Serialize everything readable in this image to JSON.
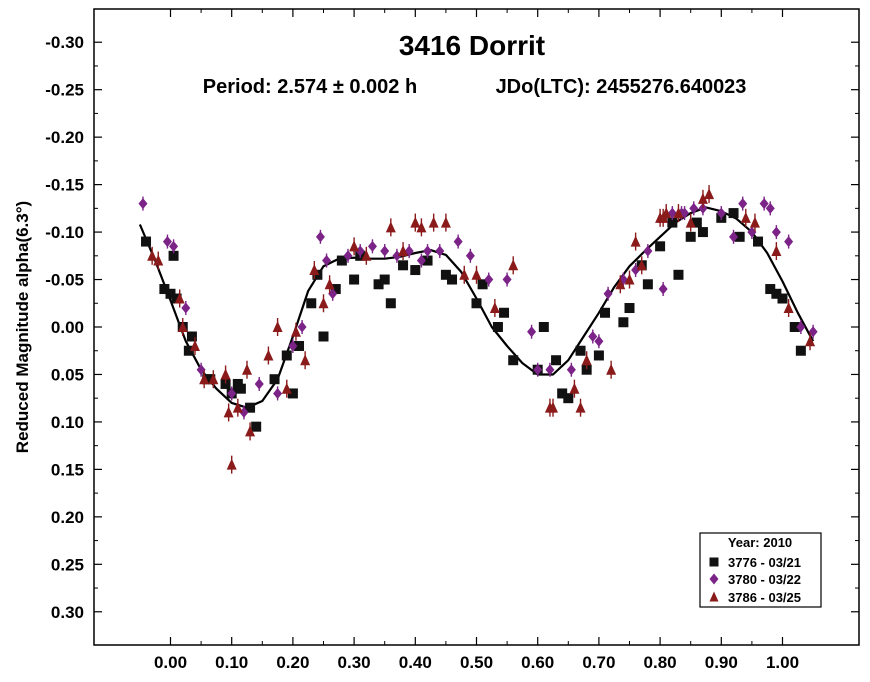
{
  "chart_data": {
    "type": "scatter",
    "title": "3416 Dorrit",
    "subtitle_period": "Period: 2.574 ± 0.002 h",
    "subtitle_epoch": "JDo(LTC): 2455276.640023",
    "xlabel": "",
    "ylabel": "Reduced Magnitude alpha(6.3°)",
    "xlim": [
      -0.125,
      1.125
    ],
    "ylim": [
      0.335,
      -0.335
    ],
    "y_inverted": true,
    "grid": false,
    "xticks": [
      0.0,
      0.1,
      0.2,
      0.3,
      0.4,
      0.5,
      0.6,
      0.7,
      0.8,
      0.9,
      1.0
    ],
    "xtick_labels": [
      "0.00",
      "0.10",
      "0.20",
      "0.30",
      "0.40",
      "0.50",
      "0.60",
      "0.70",
      "0.80",
      "0.90",
      "1.00"
    ],
    "yticks": [
      -0.3,
      -0.25,
      -0.2,
      -0.15,
      -0.1,
      -0.05,
      0.0,
      0.05,
      0.1,
      0.15,
      0.2,
      0.25,
      0.3
    ],
    "ytick_labels": [
      "-0.30",
      "-0.25",
      "-0.20",
      "-0.15",
      "-0.10",
      "-0.05",
      "0.00",
      "0.05",
      "0.10",
      "0.15",
      "0.20",
      "0.25",
      "0.30"
    ],
    "legend": {
      "position": "bottom-right",
      "title": "Year: 2010",
      "entries": [
        "3776 - 03/21",
        "3780 - 03/22",
        "3786 - 03/25"
      ]
    },
    "series": [
      {
        "name": "3776 - 03/21",
        "marker": "square",
        "color": "#111111",
        "x": [
          -0.04,
          -0.01,
          0.0,
          0.005,
          0.01,
          0.02,
          0.03,
          0.035,
          0.06,
          0.065,
          0.09,
          0.1,
          0.11,
          0.115,
          0.13,
          0.14,
          0.17,
          0.19,
          0.2,
          0.21,
          0.23,
          0.24,
          0.25,
          0.27,
          0.28,
          0.3,
          0.31,
          0.34,
          0.35,
          0.36,
          0.38,
          0.4,
          0.42,
          0.45,
          0.46,
          0.5,
          0.51,
          0.535,
          0.545,
          0.56,
          0.6,
          0.61,
          0.63,
          0.64,
          0.65,
          0.67,
          0.68,
          0.7,
          0.71,
          0.74,
          0.75,
          0.77,
          0.78,
          0.8,
          0.82,
          0.83,
          0.85,
          0.86,
          0.87,
          0.9,
          0.92,
          0.93,
          0.96,
          0.98,
          0.99,
          1.0,
          1.02,
          1.03
        ],
        "y": [
          -0.09,
          -0.04,
          -0.035,
          -0.075,
          -0.03,
          0.0,
          0.025,
          0.01,
          0.055,
          0.055,
          0.06,
          0.07,
          0.06,
          0.065,
          0.085,
          0.105,
          0.055,
          0.03,
          0.07,
          0.02,
          -0.025,
          -0.055,
          0.01,
          -0.04,
          -0.07,
          -0.05,
          -0.075,
          -0.045,
          -0.05,
          -0.025,
          -0.065,
          -0.06,
          -0.07,
          -0.055,
          -0.05,
          -0.025,
          -0.045,
          0.0,
          -0.015,
          0.035,
          0.045,
          0.0,
          0.035,
          0.07,
          0.075,
          0.025,
          0.045,
          0.03,
          -0.015,
          -0.005,
          -0.02,
          -0.065,
          -0.045,
          -0.085,
          -0.11,
          -0.055,
          -0.095,
          -0.11,
          -0.1,
          -0.115,
          -0.12,
          -0.095,
          -0.09,
          -0.04,
          -0.035,
          -0.03,
          0.0,
          0.025
        ]
      },
      {
        "name": "3780 - 03/22",
        "marker": "diamond",
        "color": "#7b2387",
        "x": [
          -0.045,
          -0.005,
          0.005,
          0.025,
          0.05,
          0.1,
          0.12,
          0.145,
          0.175,
          0.2,
          0.215,
          0.245,
          0.255,
          0.265,
          0.29,
          0.31,
          0.33,
          0.35,
          0.37,
          0.39,
          0.41,
          0.42,
          0.44,
          0.47,
          0.49,
          0.52,
          0.55,
          0.59,
          0.6,
          0.62,
          0.655,
          0.69,
          0.7,
          0.715,
          0.74,
          0.76,
          0.78,
          0.805,
          0.82,
          0.835,
          0.84,
          0.855,
          0.87,
          0.9,
          0.92,
          0.935,
          0.95,
          0.97,
          0.98,
          0.99,
          1.01,
          1.03,
          1.05
        ],
        "y": [
          -0.13,
          -0.09,
          -0.085,
          -0.02,
          0.045,
          0.07,
          0.09,
          0.06,
          0.07,
          0.02,
          0.0,
          -0.095,
          -0.07,
          -0.035,
          -0.075,
          -0.08,
          -0.085,
          -0.08,
          -0.075,
          -0.08,
          -0.07,
          -0.08,
          -0.08,
          -0.09,
          -0.075,
          -0.05,
          -0.05,
          0.005,
          0.045,
          0.045,
          0.045,
          0.01,
          0.015,
          -0.035,
          -0.05,
          -0.06,
          -0.08,
          -0.04,
          -0.12,
          -0.12,
          -0.12,
          -0.125,
          -0.125,
          -0.12,
          -0.095,
          -0.13,
          -0.1,
          -0.13,
          -0.125,
          -0.1,
          -0.09,
          0.0,
          0.005
        ]
      },
      {
        "name": "3786 - 03/25",
        "marker": "triangle",
        "color": "#8b1a1a",
        "x": [
          -0.03,
          -0.02,
          0.015,
          0.02,
          0.04,
          0.055,
          0.07,
          0.09,
          0.095,
          0.1,
          0.11,
          0.125,
          0.13,
          0.16,
          0.175,
          0.19,
          0.205,
          0.22,
          0.235,
          0.25,
          0.26,
          0.3,
          0.32,
          0.36,
          0.38,
          0.4,
          0.41,
          0.43,
          0.45,
          0.48,
          0.5,
          0.53,
          0.56,
          0.62,
          0.625,
          0.66,
          0.67,
          0.68,
          0.72,
          0.735,
          0.75,
          0.76,
          0.77,
          0.8,
          0.805,
          0.81,
          0.83,
          0.85,
          0.87,
          0.88,
          0.94,
          0.955,
          0.99,
          1.01,
          1.045
        ],
        "y": [
          -0.075,
          -0.07,
          -0.03,
          0.0,
          0.02,
          0.055,
          0.055,
          0.05,
          0.09,
          0.145,
          0.085,
          0.045,
          0.11,
          0.03,
          0.0,
          0.065,
          0.005,
          0.035,
          -0.06,
          -0.025,
          -0.045,
          -0.085,
          -0.075,
          -0.105,
          -0.08,
          -0.11,
          -0.105,
          -0.11,
          -0.11,
          -0.055,
          -0.055,
          -0.02,
          -0.065,
          0.085,
          0.085,
          0.065,
          0.085,
          0.035,
          0.045,
          -0.045,
          -0.05,
          -0.09,
          -0.065,
          -0.115,
          -0.115,
          -0.12,
          -0.12,
          -0.11,
          -0.135,
          -0.14,
          -0.115,
          -0.11,
          -0.08,
          -0.02,
          0.015
        ]
      }
    ],
    "fit_curve": {
      "x": [
        -0.05,
        -0.025,
        0.0,
        0.025,
        0.05,
        0.075,
        0.1,
        0.125,
        0.15,
        0.175,
        0.2,
        0.225,
        0.25,
        0.275,
        0.3,
        0.325,
        0.35,
        0.375,
        0.4,
        0.425,
        0.45,
        0.475,
        0.5,
        0.525,
        0.55,
        0.575,
        0.6,
        0.625,
        0.65,
        0.675,
        0.7,
        0.725,
        0.75,
        0.775,
        0.8,
        0.825,
        0.85,
        0.875,
        0.9,
        0.925,
        0.95,
        0.975,
        1.0,
        1.025,
        1.05
      ],
      "y": [
        -0.108,
        -0.07,
        -0.028,
        0.015,
        0.045,
        0.065,
        0.08,
        0.085,
        0.078,
        0.055,
        0.01,
        -0.038,
        -0.064,
        -0.072,
        -0.073,
        -0.072,
        -0.072,
        -0.074,
        -0.078,
        -0.081,
        -0.076,
        -0.058,
        -0.03,
        0.0,
        0.02,
        0.038,
        0.05,
        0.05,
        0.035,
        0.01,
        -0.015,
        -0.042,
        -0.064,
        -0.08,
        -0.095,
        -0.11,
        -0.12,
        -0.126,
        -0.122,
        -0.114,
        -0.1,
        -0.078,
        -0.048,
        -0.015,
        0.015
      ]
    }
  }
}
